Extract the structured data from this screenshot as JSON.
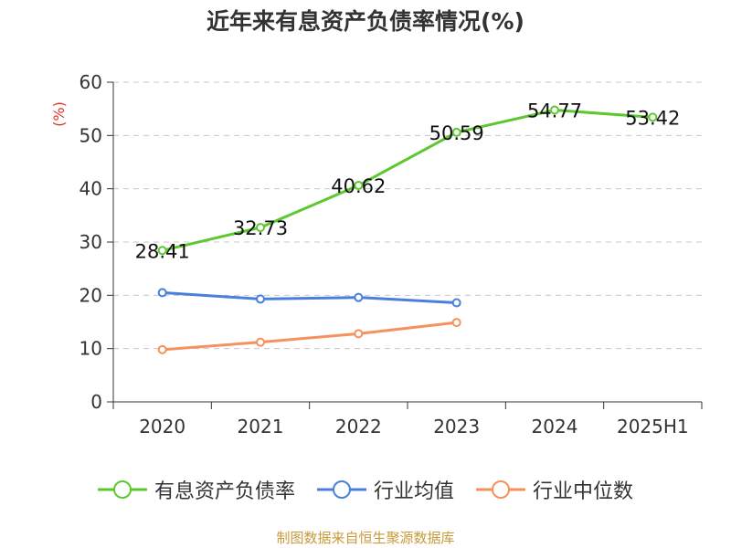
{
  "title": "近年来有息资产负债率情况(%)",
  "source": "制图数据来自恒生聚源数据库",
  "chart_data": {
    "type": "line",
    "title": "近年来有息资产负债率情况(%)",
    "ylabel": "(%)",
    "xlabel": "",
    "categories": [
      "2020",
      "2021",
      "2022",
      "2023",
      "2024",
      "2025H1"
    ],
    "ylim": [
      0,
      60
    ],
    "yticks": [
      0,
      10,
      20,
      30,
      40,
      50,
      60
    ],
    "grid": true,
    "legend_position": "bottom",
    "series": [
      {
        "name": "有息资产负债率",
        "color": "#5cc82e",
        "values": [
          28.41,
          32.73,
          40.62,
          50.59,
          54.77,
          53.42
        ],
        "labels": [
          "28.41",
          "32.73",
          "40.62",
          "50.59",
          "54.77",
          "53.42"
        ]
      },
      {
        "name": "行业均值",
        "color": "#4a7fdc",
        "values": [
          20.5,
          19.3,
          19.6,
          18.6,
          null,
          null
        ]
      },
      {
        "name": "行业中位数",
        "color": "#f5915c",
        "values": [
          9.8,
          11.2,
          12.8,
          14.9,
          null,
          null
        ]
      }
    ]
  }
}
